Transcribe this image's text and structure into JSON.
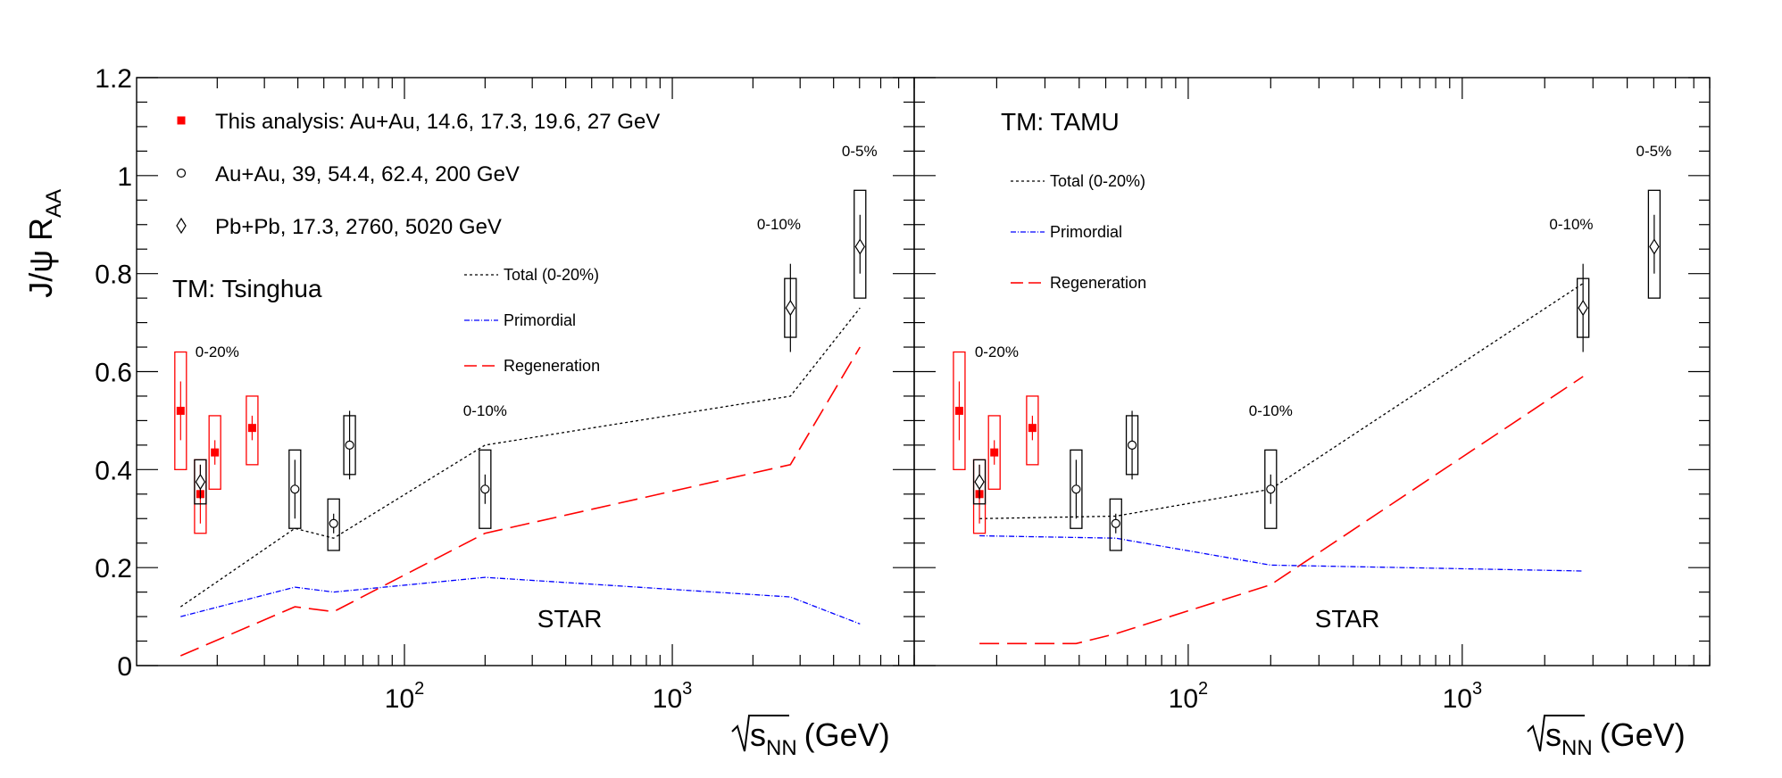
{
  "chart_data": {
    "type": "scatter",
    "ylabel_main": "J/ψ R",
    "ylabel_sub": "AA",
    "xlabel_main": "s",
    "xlabel_sub": "NN",
    "xlabel_unit": "(GeV)",
    "x_scale": "log",
    "xlim": [
      10,
      8000
    ],
    "ylim": [
      0,
      1.2
    ],
    "y_ticks": [
      "0",
      "0.2",
      "0.4",
      "0.6",
      "0.8",
      "1",
      "1.2"
    ],
    "x_ticks": [
      {
        "base": "10",
        "exp": "2"
      },
      {
        "base": "10",
        "exp": "3"
      }
    ],
    "legend": [
      {
        "marker": "filled-square",
        "color": "#ff0000",
        "label": "This analysis: Au+Au, 14.6, 17.3, 19.6, 27 GeV"
      },
      {
        "marker": "open-circle",
        "color": "#000000",
        "label": "Au+Au, 39, 54.4, 62.4, 200 GeV"
      },
      {
        "marker": "open-diamond",
        "color": "#000000",
        "label": "Pb+Pb, 17.3, 2760, 5020 GeV"
      }
    ],
    "star_label": "STAR",
    "colors": {
      "data_red": "#ff0000",
      "total": "#000000",
      "primordial": "#0000ff",
      "regeneration": "#ff0000"
    },
    "data_series": [
      {
        "name": "This analysis: Au+Au, 14.6, 17.3, 19.6, 27 GeV",
        "marker": "filled-square",
        "color": "#ff0000",
        "points": [
          {
            "x": 14.6,
            "y": 0.52,
            "stat_lo": 0.46,
            "stat_hi": 0.58,
            "sys_lo": 0.4,
            "sys_hi": 0.64
          },
          {
            "x": 17.3,
            "y": 0.35,
            "stat_lo": 0.29,
            "stat_hi": 0.41,
            "sys_lo": 0.27,
            "sys_hi": 0.42
          },
          {
            "x": 19.6,
            "y": 0.435,
            "stat_lo": 0.41,
            "stat_hi": 0.46,
            "sys_lo": 0.36,
            "sys_hi": 0.51
          },
          {
            "x": 27,
            "y": 0.485,
            "stat_lo": 0.46,
            "stat_hi": 0.51,
            "sys_lo": 0.41,
            "sys_hi": 0.55
          }
        ]
      },
      {
        "name": "Au+Au, 39, 54.4, 62.4, 200 GeV",
        "marker": "open-circle",
        "color": "#000000",
        "points": [
          {
            "x": 39,
            "y": 0.36,
            "stat_lo": 0.3,
            "stat_hi": 0.42,
            "sys_lo": 0.28,
            "sys_hi": 0.44
          },
          {
            "x": 54.4,
            "y": 0.29,
            "stat_lo": 0.27,
            "stat_hi": 0.31,
            "sys_lo": 0.235,
            "sys_hi": 0.34
          },
          {
            "x": 62.4,
            "y": 0.45,
            "stat_lo": 0.38,
            "stat_hi": 0.52,
            "sys_lo": 0.39,
            "sys_hi": 0.51
          },
          {
            "x": 200,
            "y": 0.36,
            "stat_lo": 0.33,
            "stat_hi": 0.39,
            "sys_lo": 0.28,
            "sys_hi": 0.44
          }
        ]
      },
      {
        "name": "Pb+Pb, 17.3, 2760, 5020 GeV",
        "marker": "open-diamond",
        "color": "#000000",
        "points": [
          {
            "x": 17.3,
            "y": 0.375,
            "stat_lo": 0.34,
            "stat_hi": 0.41,
            "sys_lo": 0.33,
            "sys_hi": 0.42
          },
          {
            "x": 2760,
            "y": 0.73,
            "stat_lo": 0.64,
            "stat_hi": 0.82,
            "sys_lo": 0.67,
            "sys_hi": 0.79
          },
          {
            "x": 5020,
            "y": 0.855,
            "stat_lo": 0.8,
            "stat_hi": 0.92,
            "sys_lo": 0.75,
            "sys_hi": 0.97
          }
        ]
      }
    ],
    "panels": [
      {
        "model": "TM: Tsinghua",
        "model_legend": [
          "Total (0-20%)",
          "Primordial",
          "Regeneration"
        ],
        "centrality_labels": [
          {
            "text": "0-20%",
            "x": 20,
            "y": 0.63
          },
          {
            "text": "0-10%",
            "x": 200,
            "y": 0.51
          },
          {
            "text": "0-10%",
            "x": 2500,
            "y": 0.89
          },
          {
            "text": "0-5%",
            "x": 5000,
            "y": 1.04
          }
        ],
        "curves": {
          "total": [
            [
              14.6,
              0.12
            ],
            [
              39,
              0.28
            ],
            [
              54.4,
              0.26
            ],
            [
              200,
              0.45
            ],
            [
              2760,
              0.55
            ],
            [
              5020,
              0.73
            ]
          ],
          "primordial": [
            [
              14.6,
              0.1
            ],
            [
              39,
              0.16
            ],
            [
              54.4,
              0.15
            ],
            [
              200,
              0.18
            ],
            [
              2760,
              0.14
            ],
            [
              5020,
              0.085
            ]
          ],
          "regeneration": [
            [
              14.6,
              0.02
            ],
            [
              39,
              0.12
            ],
            [
              54.4,
              0.11
            ],
            [
              200,
              0.27
            ],
            [
              2760,
              0.41
            ],
            [
              5020,
              0.65
            ]
          ]
        }
      },
      {
        "model": "TM: TAMU",
        "model_legend": [
          "Total (0-20%)",
          "Primordial",
          "Regeneration"
        ],
        "centrality_labels": [
          {
            "text": "0-20%",
            "x": 20,
            "y": 0.63
          },
          {
            "text": "0-10%",
            "x": 200,
            "y": 0.51
          },
          {
            "text": "0-10%",
            "x": 2500,
            "y": 0.89
          },
          {
            "text": "0-5%",
            "x": 5000,
            "y": 1.04
          }
        ],
        "curves": {
          "total": [
            [
              17.3,
              0.3
            ],
            [
              54.4,
              0.305
            ],
            [
              200,
              0.36
            ],
            [
              2760,
              0.78
            ]
          ],
          "primordial": [
            [
              17.3,
              0.265
            ],
            [
              54.4,
              0.26
            ],
            [
              200,
              0.205
            ],
            [
              2760,
              0.193
            ]
          ],
          "regeneration": [
            [
              17.3,
              0.045
            ],
            [
              39,
              0.045
            ],
            [
              54.4,
              0.065
            ],
            [
              200,
              0.165
            ],
            [
              2760,
              0.59
            ]
          ]
        }
      }
    ]
  }
}
